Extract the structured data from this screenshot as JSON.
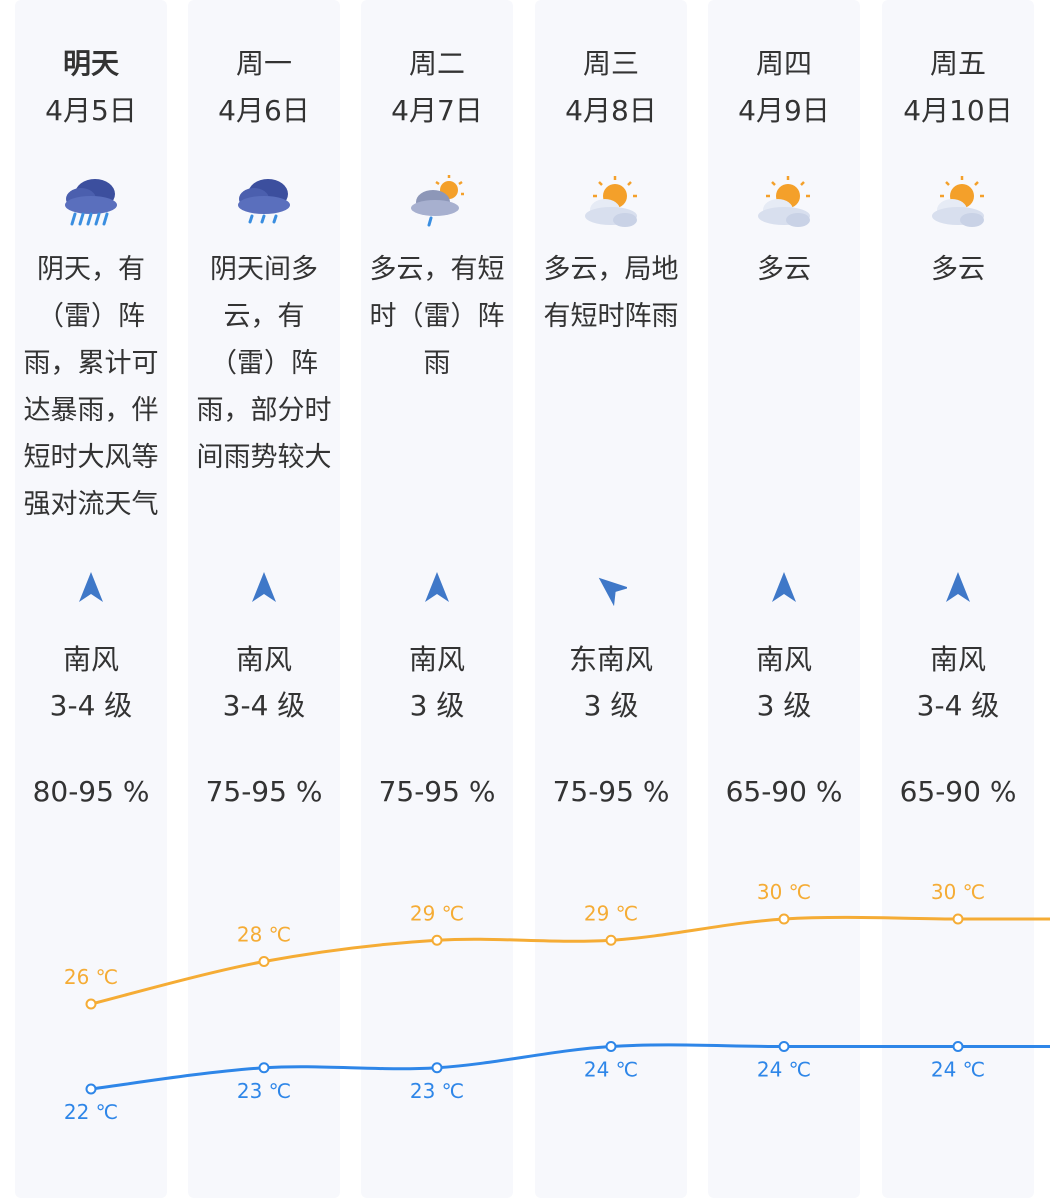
{
  "days": [
    {
      "day": "明天",
      "date": "4月5日",
      "icon": "heavy-rain-icon",
      "desc": "阴天，有（雷）阵雨，累计可达暴雨，伴短时大风等强对流天气",
      "wind_dir": "南风",
      "wind_level": "3-4 级",
      "wind_arrow": "south-wind-arrow-icon",
      "humidity": "80-95 %",
      "high": "26 ℃",
      "low": "22 ℃"
    },
    {
      "day": "周一",
      "date": "4月6日",
      "icon": "rain-icon",
      "desc": "阴天间多云，有（雷）阵雨，部分时间雨势较大",
      "wind_dir": "南风",
      "wind_level": "3-4 级",
      "wind_arrow": "south-wind-arrow-icon",
      "humidity": "75-95 %",
      "high": "28 ℃",
      "low": "23 ℃"
    },
    {
      "day": "周二",
      "date": "4月7日",
      "icon": "sun-cloud-rain-icon",
      "desc": "多云，有短时（雷）阵雨",
      "wind_dir": "南风",
      "wind_level": "3 级",
      "wind_arrow": "south-wind-arrow-icon",
      "humidity": "75-95 %",
      "high": "29 ℃",
      "low": "23 ℃"
    },
    {
      "day": "周三",
      "date": "4月8日",
      "icon": "partly-cloudy-icon",
      "desc": "多云，局地有短时阵雨",
      "wind_dir": "东南风",
      "wind_level": "3 级",
      "wind_arrow": "southeast-wind-arrow-icon",
      "humidity": "75-95 %",
      "high": "29 ℃",
      "low": "24 ℃"
    },
    {
      "day": "周四",
      "date": "4月9日",
      "icon": "partly-cloudy-icon",
      "desc": "多云",
      "wind_dir": "南风",
      "wind_level": "3 级",
      "wind_arrow": "south-wind-arrow-icon",
      "humidity": "65-90 %",
      "high": "30 ℃",
      "low": "24 ℃"
    },
    {
      "day": "周五",
      "date": "4月10日",
      "icon": "partly-cloudy-icon",
      "desc": "多云",
      "wind_dir": "南风",
      "wind_level": "3-4 级",
      "wind_arrow": "south-wind-arrow-icon",
      "humidity": "65-90 %",
      "high": "30 ℃",
      "low": "24 ℃"
    }
  ],
  "temperature": {
    "high": [
      26,
      28,
      29,
      29,
      30,
      30
    ],
    "low": [
      22,
      23,
      23,
      24,
      24,
      24
    ],
    "high_color": "#f5ac35",
    "low_color": "#2e86e8"
  }
}
